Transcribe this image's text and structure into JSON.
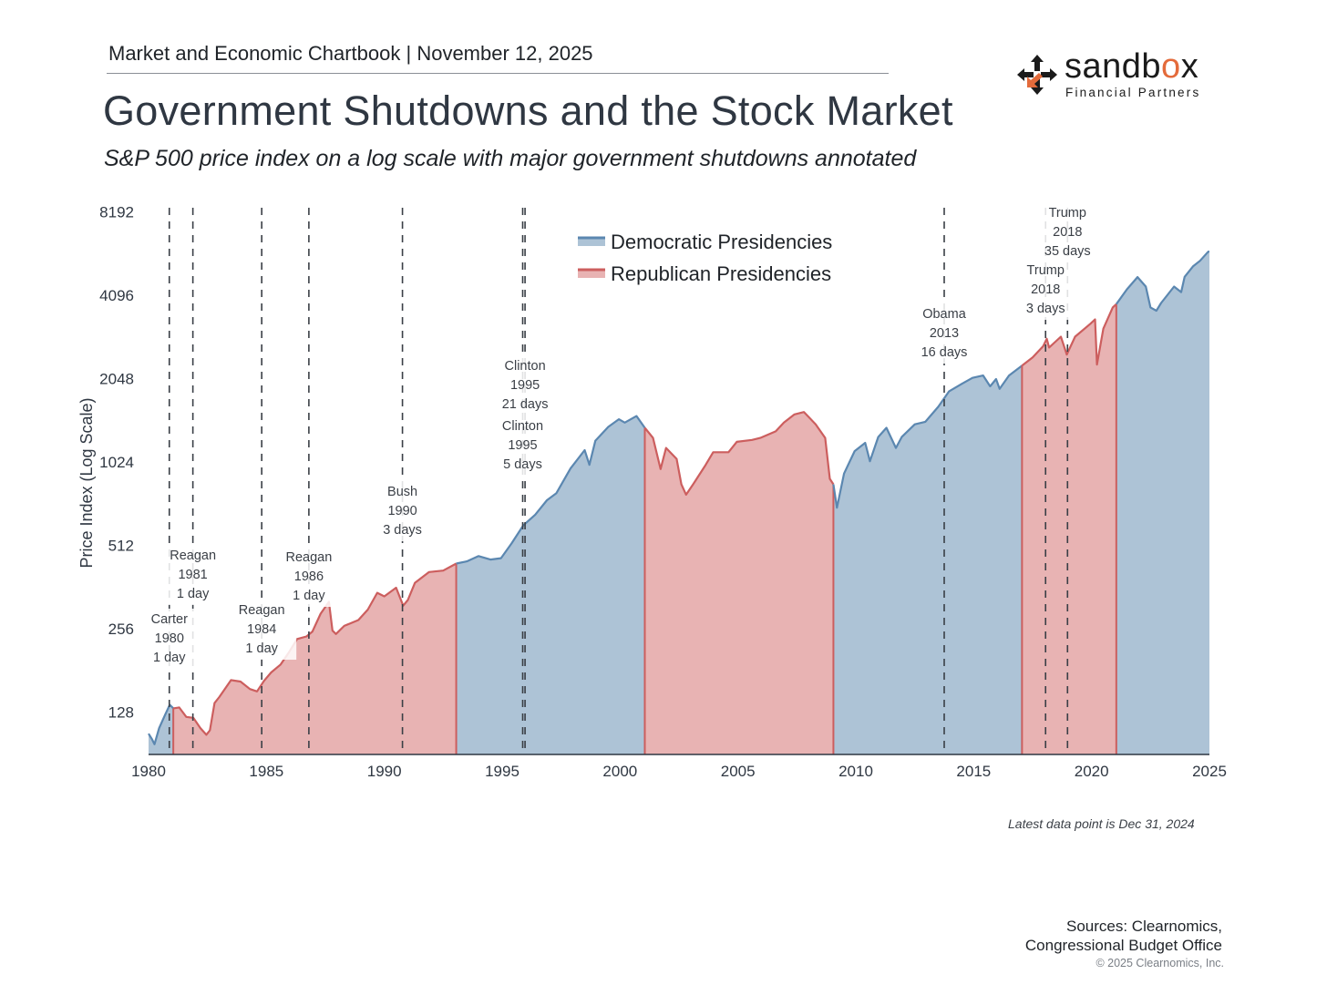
{
  "header": {
    "text": "Market and Economic Chartbook | November 12, 2025"
  },
  "title": "Government Shutdowns and the Stock Market",
  "subtitle": "S&P 500 price index on a log scale with major government shutdowns annotated",
  "logo": {
    "word_prefix": "sandb",
    "word_accent": "o",
    "word_suffix": "x",
    "sub": "Financial Partners",
    "accent_color": "#e46b3b"
  },
  "footer": {
    "latest": "Latest data point is Dec 31, 2024",
    "sources_line1": "Sources: Clearnomics,",
    "sources_line2": "Congressional Budget Office",
    "copyright": "© 2025 Clearnomics, Inc."
  },
  "chart_data": {
    "type": "area",
    "ylabel": "Price Index (Log Scale)",
    "xlabel": "",
    "yscale": "log2",
    "ylim": [
      90,
      9000
    ],
    "xlim": [
      1980,
      2025
    ],
    "x_ticks": [
      1980,
      1985,
      1990,
      1995,
      2000,
      2005,
      2010,
      2015,
      2020,
      2025
    ],
    "y_ticks": [
      128,
      256,
      512,
      1024,
      2048,
      4096,
      8192
    ],
    "legend": {
      "placement": "top-center"
    },
    "colors": {
      "democratic_line": "#5b87b0",
      "democratic_fill": "#adc3d6",
      "republican_line": "#cc5e5e",
      "republican_fill": "#e8b3b3"
    },
    "series": [
      {
        "name": "Democratic Presidencies",
        "color": "#5b87b0"
      },
      {
        "name": "Republican Presidencies",
        "color": "#cc5e5e"
      }
    ],
    "presidencies": [
      {
        "party": "D",
        "start": 1980.0,
        "end": 1981.05
      },
      {
        "party": "R",
        "start": 1981.05,
        "end": 1993.05
      },
      {
        "party": "D",
        "start": 1993.05,
        "end": 2001.05
      },
      {
        "party": "R",
        "start": 2001.05,
        "end": 2009.05
      },
      {
        "party": "D",
        "start": 2009.05,
        "end": 2017.05
      },
      {
        "party": "R",
        "start": 2017.05,
        "end": 2021.05
      },
      {
        "party": "D",
        "start": 2021.05,
        "end": 2025.0
      }
    ],
    "sp500": [
      [
        1980.0,
        107
      ],
      [
        1980.15,
        102
      ],
      [
        1980.25,
        98
      ],
      [
        1980.45,
        112
      ],
      [
        1980.7,
        125
      ],
      [
        1980.9,
        136
      ],
      [
        1981.05,
        132
      ],
      [
        1981.3,
        133
      ],
      [
        1981.6,
        123
      ],
      [
        1981.9,
        122
      ],
      [
        1982.2,
        112
      ],
      [
        1982.45,
        106
      ],
      [
        1982.6,
        110
      ],
      [
        1982.8,
        138
      ],
      [
        1983.0,
        145
      ],
      [
        1983.5,
        167
      ],
      [
        1983.9,
        165
      ],
      [
        1984.3,
        155
      ],
      [
        1984.6,
        152
      ],
      [
        1984.9,
        166
      ],
      [
        1985.2,
        178
      ],
      [
        1985.6,
        190
      ],
      [
        1985.95,
        210
      ],
      [
        1986.3,
        235
      ],
      [
        1986.7,
        240
      ],
      [
        1986.95,
        250
      ],
      [
        1987.3,
        290
      ],
      [
        1987.65,
        320
      ],
      [
        1987.8,
        252
      ],
      [
        1987.95,
        245
      ],
      [
        1988.3,
        262
      ],
      [
        1988.9,
        275
      ],
      [
        1989.3,
        300
      ],
      [
        1989.7,
        345
      ],
      [
        1990.0,
        335
      ],
      [
        1990.5,
        360
      ],
      [
        1990.8,
        310
      ],
      [
        1991.0,
        325
      ],
      [
        1991.3,
        375
      ],
      [
        1991.9,
        410
      ],
      [
        1992.5,
        415
      ],
      [
        1993.05,
        440
      ],
      [
        1993.5,
        448
      ],
      [
        1994.0,
        468
      ],
      [
        1994.5,
        455
      ],
      [
        1994.95,
        460
      ],
      [
        1995.4,
        520
      ],
      [
        1995.9,
        605
      ],
      [
        1996.4,
        660
      ],
      [
        1996.9,
        745
      ],
      [
        1997.3,
        790
      ],
      [
        1997.9,
        970
      ],
      [
        1998.5,
        1130
      ],
      [
        1998.7,
        1000
      ],
      [
        1998.95,
        1220
      ],
      [
        1999.5,
        1370
      ],
      [
        1999.95,
        1460
      ],
      [
        2000.2,
        1420
      ],
      [
        2000.7,
        1500
      ],
      [
        2001.05,
        1360
      ],
      [
        2001.4,
        1250
      ],
      [
        2001.72,
        965
      ],
      [
        2001.95,
        1150
      ],
      [
        2002.4,
        1050
      ],
      [
        2002.6,
        850
      ],
      [
        2002.8,
        780
      ],
      [
        2003.1,
        850
      ],
      [
        2003.6,
        990
      ],
      [
        2003.95,
        1110
      ],
      [
        2004.6,
        1110
      ],
      [
        2004.95,
        1210
      ],
      [
        2005.6,
        1230
      ],
      [
        2005.95,
        1250
      ],
      [
        2006.6,
        1320
      ],
      [
        2006.95,
        1420
      ],
      [
        2007.4,
        1520
      ],
      [
        2007.8,
        1550
      ],
      [
        2008.3,
        1400
      ],
      [
        2008.7,
        1250
      ],
      [
        2008.9,
        890
      ],
      [
        2009.05,
        850
      ],
      [
        2009.2,
        700
      ],
      [
        2009.5,
        930
      ],
      [
        2009.95,
        1120
      ],
      [
        2010.4,
        1200
      ],
      [
        2010.6,
        1030
      ],
      [
        2010.95,
        1260
      ],
      [
        2011.3,
        1360
      ],
      [
        2011.7,
        1150
      ],
      [
        2011.95,
        1260
      ],
      [
        2012.5,
        1400
      ],
      [
        2012.95,
        1430
      ],
      [
        2013.5,
        1620
      ],
      [
        2013.95,
        1840
      ],
      [
        2014.5,
        1960
      ],
      [
        2014.95,
        2060
      ],
      [
        2015.4,
        2100
      ],
      [
        2015.7,
        1920
      ],
      [
        2015.95,
        2040
      ],
      [
        2016.1,
        1880
      ],
      [
        2016.5,
        2100
      ],
      [
        2017.05,
        2280
      ],
      [
        2017.5,
        2440
      ],
      [
        2017.95,
        2680
      ],
      [
        2018.1,
        2850
      ],
      [
        2018.2,
        2650
      ],
      [
        2018.7,
        2900
      ],
      [
        2018.95,
        2500
      ],
      [
        2019.3,
        2900
      ],
      [
        2019.95,
        3230
      ],
      [
        2020.15,
        3350
      ],
      [
        2020.23,
        2300
      ],
      [
        2020.5,
        3100
      ],
      [
        2020.9,
        3700
      ],
      [
        2021.05,
        3800
      ],
      [
        2021.5,
        4300
      ],
      [
        2021.95,
        4760
      ],
      [
        2022.3,
        4400
      ],
      [
        2022.5,
        3700
      ],
      [
        2022.75,
        3600
      ],
      [
        2022.95,
        3840
      ],
      [
        2023.5,
        4400
      ],
      [
        2023.8,
        4200
      ],
      [
        2023.95,
        4770
      ],
      [
        2024.3,
        5200
      ],
      [
        2024.6,
        5450
      ],
      [
        2024.95,
        5880
      ]
    ],
    "shutdowns": [
      {
        "x": 1980.88,
        "name": "Carter",
        "year": "1980",
        "days": "1 day"
      },
      {
        "x": 1981.88,
        "name": "Reagan",
        "year": "1981",
        "days": "1 day"
      },
      {
        "x": 1984.8,
        "name": "Reagan",
        "year": "1984",
        "days": "1 day"
      },
      {
        "x": 1986.8,
        "name": "Reagan",
        "year": "1986",
        "days": "1 day"
      },
      {
        "x": 1990.77,
        "name": "Bush",
        "year": "1990",
        "days": "3 days"
      },
      {
        "x": 1995.87,
        "name": "Clinton",
        "year": "1995",
        "days": "5 days"
      },
      {
        "x": 1995.97,
        "name": "Clinton",
        "year": "1995",
        "days": "21 days"
      },
      {
        "x": 2013.75,
        "name": "Obama",
        "year": "2013",
        "days": "16 days"
      },
      {
        "x": 2018.05,
        "name": "Trump",
        "year": "2018",
        "days": "3 days"
      },
      {
        "x": 2018.98,
        "name": "Trump",
        "year": "2018",
        "days": "35 days"
      }
    ]
  }
}
